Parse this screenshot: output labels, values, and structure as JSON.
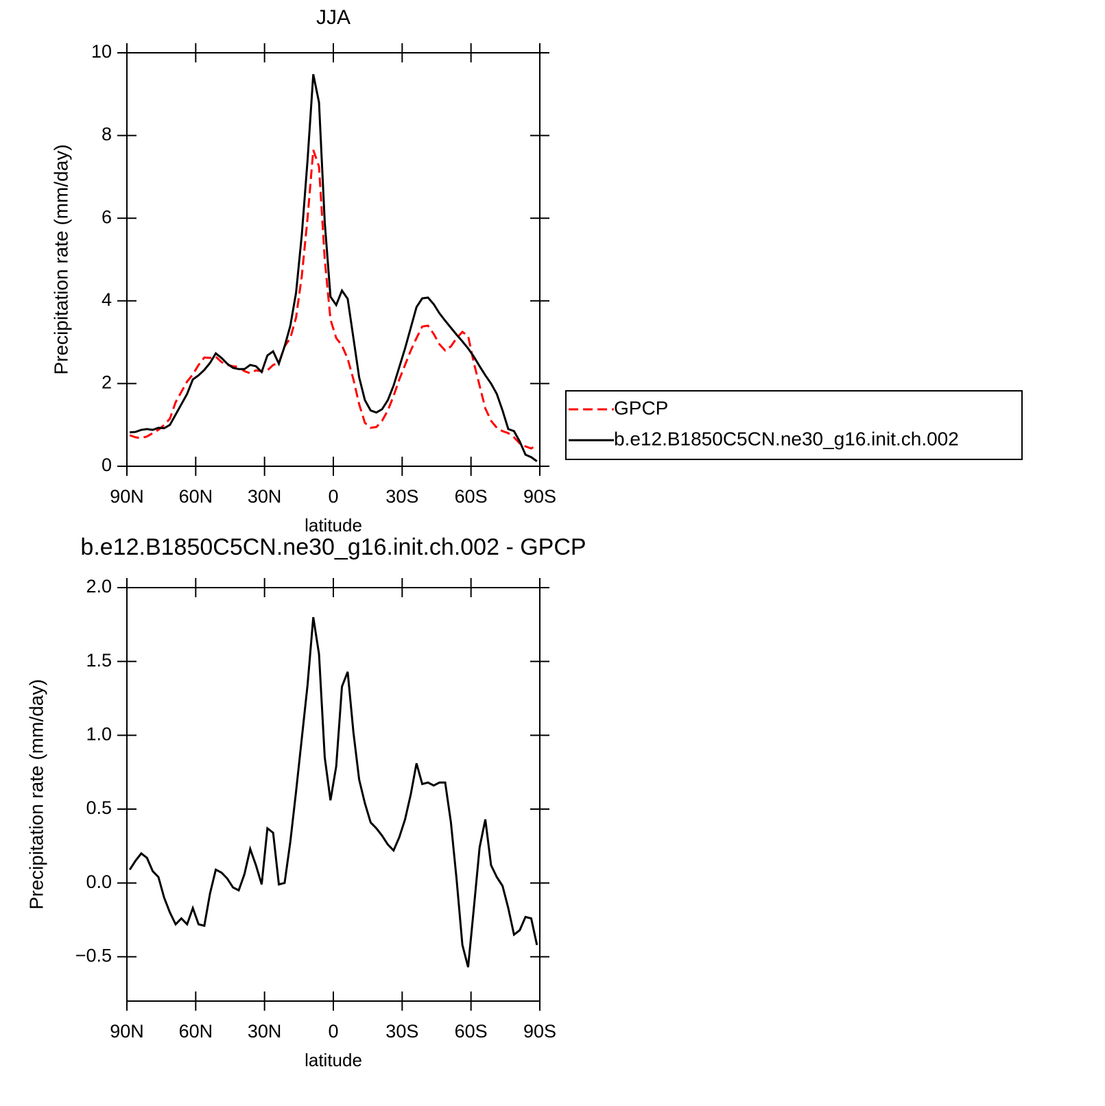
{
  "chart_data": [
    {
      "type": "line",
      "title": "JJA",
      "xlabel": "latitude",
      "ylabel": "Precipitation rate (mm/day)",
      "x": [
        88.75,
        86.25,
        83.75,
        81.25,
        78.75,
        76.25,
        73.75,
        71.25,
        68.75,
        66.25,
        63.75,
        61.25,
        58.75,
        56.25,
        53.75,
        51.25,
        48.75,
        46.25,
        43.75,
        41.25,
        38.75,
        36.25,
        33.75,
        31.25,
        28.75,
        26.25,
        23.75,
        21.25,
        18.75,
        16.25,
        13.75,
        11.25,
        8.75,
        6.25,
        3.75,
        1.25,
        -1.25,
        -3.75,
        -6.25,
        -8.75,
        -11.25,
        -13.75,
        -16.25,
        -18.75,
        -21.25,
        -23.75,
        -26.25,
        -28.75,
        -31.25,
        -33.75,
        -36.25,
        -38.75,
        -41.25,
        -43.75,
        -46.25,
        -48.75,
        -51.25,
        -53.75,
        -56.25,
        -58.75,
        -61.25,
        -63.75,
        -66.25,
        -68.75,
        -71.25,
        -73.75,
        -76.25,
        -78.75,
        -81.25,
        -83.75,
        -86.25,
        -88.75
      ],
      "xlim": [
        90,
        -90
      ],
      "xticks": [
        {
          "value": 90,
          "label": "90N"
        },
        {
          "value": 60,
          "label": "60N"
        },
        {
          "value": 30,
          "label": "30N"
        },
        0,
        {
          "value": -30,
          "label": "30S"
        },
        {
          "value": -60,
          "label": "60S"
        },
        {
          "value": -90,
          "label": "90S"
        }
      ],
      "ylim": [
        0,
        10
      ],
      "yticks": [
        0,
        2,
        4,
        6,
        8,
        10
      ],
      "legend": "right",
      "series": [
        {
          "name": "GPCP",
          "color": "#ff0000",
          "dashed": true,
          "values": [
            0.75,
            0.7,
            0.68,
            0.72,
            0.8,
            0.88,
            1.0,
            1.15,
            1.55,
            1.8,
            2.05,
            2.22,
            2.45,
            2.63,
            2.62,
            2.65,
            2.52,
            2.45,
            2.42,
            2.4,
            2.3,
            2.25,
            2.32,
            2.3,
            2.32,
            2.45,
            2.5,
            2.9,
            3.1,
            3.6,
            4.6,
            6.0,
            7.65,
            7.25,
            5.0,
            3.55,
            3.1,
            2.92,
            2.6,
            2.1,
            1.5,
            1.05,
            0.93,
            0.95,
            1.1,
            1.35,
            1.7,
            2.1,
            2.45,
            2.8,
            3.1,
            3.38,
            3.4,
            3.2,
            2.95,
            2.8,
            2.9,
            3.1,
            3.25,
            3.15,
            2.5,
            1.95,
            1.4,
            1.1,
            0.93,
            0.85,
            0.8,
            0.7,
            0.55,
            0.48,
            0.43,
            0.52
          ]
        },
        {
          "name": "b.e12.B1850C5CN.ne30_g16.init.ch.002",
          "color": "#000000",
          "dashed": false,
          "values": [
            0.82,
            0.83,
            0.88,
            0.9,
            0.88,
            0.93,
            0.92,
            1.0,
            1.25,
            1.5,
            1.75,
            2.1,
            2.2,
            2.33,
            2.5,
            2.73,
            2.62,
            2.48,
            2.38,
            2.35,
            2.35,
            2.45,
            2.42,
            2.28,
            2.68,
            2.78,
            2.48,
            2.9,
            3.4,
            4.2,
            5.6,
            7.4,
            9.48,
            8.8,
            5.9,
            4.1,
            3.9,
            4.25,
            4.05,
            3.1,
            2.15,
            1.6,
            1.35,
            1.3,
            1.38,
            1.6,
            1.95,
            2.4,
            2.85,
            3.35,
            3.85,
            4.06,
            4.08,
            3.92,
            3.7,
            3.52,
            3.35,
            3.18,
            3.02,
            2.85,
            2.65,
            2.42,
            2.2,
            2.0,
            1.75,
            1.35,
            0.9,
            0.85,
            0.6,
            0.28,
            0.22,
            0.12
          ]
        }
      ]
    },
    {
      "type": "line",
      "title": "b.e12.B1850C5CN.ne30_g16.init.ch.002 - GPCP",
      "xlabel": "latitude",
      "ylabel": "Precipitation rate (mm/day)",
      "x": [
        88.75,
        86.25,
        83.75,
        81.25,
        78.75,
        76.25,
        73.75,
        71.25,
        68.75,
        66.25,
        63.75,
        61.25,
        58.75,
        56.25,
        53.75,
        51.25,
        48.75,
        46.25,
        43.75,
        41.25,
        38.75,
        36.25,
        33.75,
        31.25,
        28.75,
        26.25,
        23.75,
        21.25,
        18.75,
        16.25,
        13.75,
        11.25,
        8.75,
        6.25,
        3.75,
        1.25,
        -1.25,
        -3.75,
        -6.25,
        -8.75,
        -11.25,
        -13.75,
        -16.25,
        -18.75,
        -21.25,
        -23.75,
        -26.25,
        -28.75,
        -31.25,
        -33.75,
        -36.25,
        -38.75,
        -41.25,
        -43.75,
        -46.25,
        -48.75,
        -51.25,
        -53.75,
        -56.25,
        -58.75,
        -61.25,
        -63.75,
        -66.25,
        -68.75,
        -71.25,
        -73.75,
        -76.25,
        -78.75,
        -81.25,
        -83.75,
        -86.25,
        -88.75
      ],
      "xlim": [
        90,
        -90
      ],
      "xticks": [
        {
          "value": 90,
          "label": "90N"
        },
        {
          "value": 60,
          "label": "60N"
        },
        {
          "value": 30,
          "label": "30N"
        },
        0,
        {
          "value": -30,
          "label": "30S"
        },
        {
          "value": -60,
          "label": "60S"
        },
        {
          "value": -90,
          "label": "90S"
        }
      ],
      "ylim": [
        -0.8,
        2.0
      ],
      "yticks": [
        {
          "value": -0.5,
          "label": "−0.5"
        },
        {
          "value": 0,
          "label": "0.0"
        },
        0.5,
        {
          "value": 1,
          "label": "1.0"
        },
        1.5,
        {
          "value": 2,
          "label": "2.0"
        }
      ],
      "color": "#000000",
      "values": [
        0.09,
        0.15,
        0.2,
        0.17,
        0.08,
        0.04,
        -0.1,
        -0.2,
        -0.28,
        -0.24,
        -0.28,
        -0.17,
        -0.28,
        -0.29,
        -0.07,
        0.09,
        0.07,
        0.03,
        -0.03,
        -0.05,
        0.06,
        0.23,
        0.12,
        -0.01,
        0.37,
        0.34,
        -0.01,
        0.0,
        0.28,
        0.62,
        0.98,
        1.34,
        1.8,
        1.55,
        0.85,
        0.56,
        0.79,
        1.33,
        1.43,
        1.02,
        0.7,
        0.54,
        0.41,
        0.37,
        0.32,
        0.26,
        0.22,
        0.31,
        0.43,
        0.6,
        0.81,
        0.67,
        0.68,
        0.66,
        0.68,
        0.68,
        0.41,
        0.02,
        -0.42,
        -0.57,
        -0.17,
        0.24,
        0.43,
        0.12,
        0.04,
        -0.02,
        -0.17,
        -0.35,
        -0.32,
        -0.23,
        -0.24,
        -0.42
      ]
    }
  ]
}
